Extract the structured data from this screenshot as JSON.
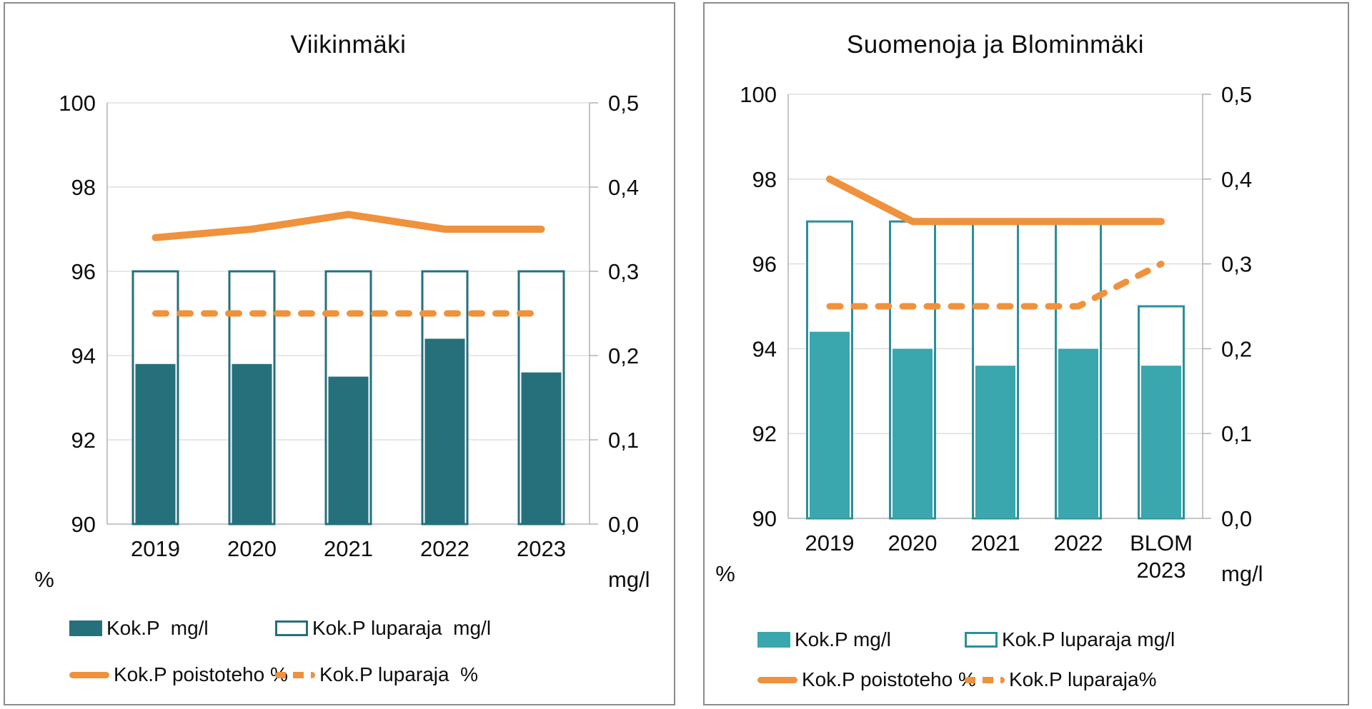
{
  "page": {
    "background": "#ffffff",
    "description": "Two combo charts of total phosphorus (Kok.P) removal at wastewater treatment plants"
  },
  "colors": {
    "teal_dark": "#26707c",
    "teal_light": "#3aa6ae",
    "teal_light_border": "#2a909a",
    "orange": "#f0913c",
    "grid": "#d9d9d9",
    "axis": "#a6a6a6",
    "panel_border": "#8c8c8c",
    "text": "#0d0d0d"
  },
  "chart_data": [
    {
      "type": "bar+line combo",
      "title": "Viikinmäki",
      "categories": [
        "2019",
        "2020",
        "2021",
        "2022",
        "2023"
      ],
      "series": [
        {
          "name": "Kok.P  mg/l",
          "type": "bar",
          "axis": "right",
          "values": [
            0.19,
            0.19,
            0.175,
            0.22,
            0.18
          ]
        },
        {
          "name": "Kok.P luparaja  mg/l",
          "type": "bar-outline",
          "axis": "right",
          "values": [
            0.3,
            0.3,
            0.3,
            0.3,
            0.3
          ]
        },
        {
          "name": "Kok.P poistoteho %",
          "type": "line",
          "axis": "left",
          "values": [
            96.8,
            97.0,
            97.35,
            97.0,
            97.0
          ]
        },
        {
          "name": "Kok.P luparaja  %",
          "type": "line-dashed",
          "axis": "left",
          "values": [
            95,
            95,
            95,
            95,
            95
          ]
        }
      ],
      "left_axis": {
        "unit": "%",
        "min": 90,
        "max": 100,
        "tick_labels": [
          "100",
          "98",
          "96",
          "94",
          "92",
          "90"
        ]
      },
      "right_axis": {
        "unit": "mg/l",
        "min": 0.0,
        "max": 0.5,
        "tick_labels": [
          "0,5",
          "0,4",
          "0,3",
          "0,2",
          "0,1",
          "0,0"
        ]
      },
      "grid": true,
      "legend_position": "below"
    },
    {
      "type": "bar+line combo",
      "title": "Suomenoja ja Blominmäki",
      "categories": [
        "2019",
        "2020",
        "2021",
        "2022",
        "BLOM\n2023"
      ],
      "series": [
        {
          "name": "Kok.P mg/l",
          "type": "bar",
          "axis": "right",
          "values": [
            0.22,
            0.2,
            0.18,
            0.2,
            0.18
          ]
        },
        {
          "name": "Kok.P luparaja mg/l",
          "type": "bar-outline",
          "axis": "right",
          "values": [
            0.35,
            0.35,
            0.35,
            0.35,
            0.25
          ]
        },
        {
          "name": "Kok.P poistoteho %",
          "type": "line",
          "axis": "left",
          "values": [
            98.0,
            97.0,
            97.0,
            97.0,
            97.0
          ]
        },
        {
          "name": "Kok.P luparaja%",
          "type": "line-dashed",
          "axis": "left",
          "values": [
            95,
            95,
            95,
            95,
            96
          ]
        }
      ],
      "left_axis": {
        "unit": "%",
        "min": 90,
        "max": 100,
        "tick_labels": [
          "100",
          "98",
          "96",
          "94",
          "92",
          "90"
        ]
      },
      "right_axis": {
        "unit": "mg/l",
        "min": 0.0,
        "max": 0.5,
        "tick_labels": [
          "0,5",
          "0,4",
          "0,3",
          "0,2",
          "0,1",
          "0,0"
        ]
      },
      "grid": true,
      "legend_position": "below"
    }
  ]
}
